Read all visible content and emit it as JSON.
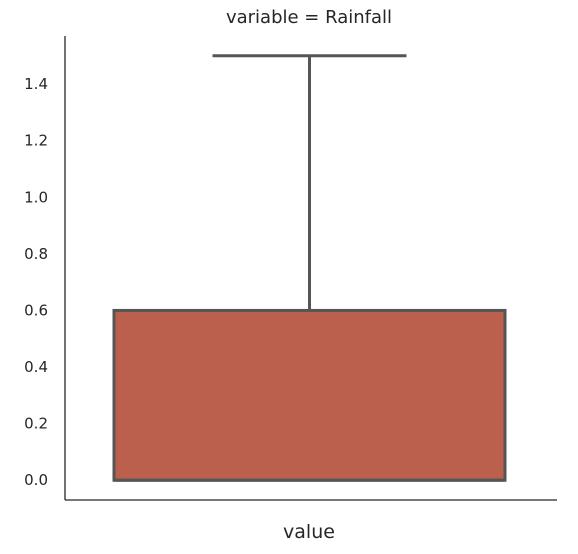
{
  "chart_data": {
    "type": "box",
    "title": "variable = Rainfall",
    "xlabel": "value",
    "ylabel": "",
    "ylim": [
      -0.07,
      1.57
    ],
    "yticks": [
      0.0,
      0.2,
      0.4,
      0.6,
      0.8,
      1.0,
      1.2,
      1.4
    ],
    "ytick_labels": [
      "0.0",
      "0.2",
      "0.4",
      "0.6",
      "0.8",
      "1.0",
      "1.2",
      "1.4"
    ],
    "grid": false,
    "series": [
      {
        "whisker_low": 0.0,
        "q1": 0.0,
        "median": 0.0,
        "q3": 0.6,
        "whisker_high": 1.5
      }
    ],
    "colors": {
      "box_fill": "#bb604c",
      "box_edge": "#555555",
      "axis": "#262626",
      "text": "#262626"
    }
  }
}
